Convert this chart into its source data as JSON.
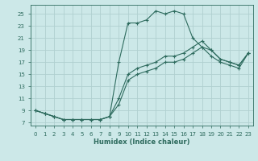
{
  "xlabel": "Humidex (Indice chaleur)",
  "bg_color": "#cce8e8",
  "grid_color": "#b0d0d0",
  "line_color": "#2e6b5e",
  "xlim": [
    -0.5,
    23.5
  ],
  "ylim": [
    6.5,
    26.5
  ],
  "xticks": [
    0,
    1,
    2,
    3,
    4,
    5,
    6,
    7,
    8,
    9,
    10,
    11,
    12,
    13,
    14,
    15,
    16,
    17,
    18,
    19,
    20,
    21,
    22,
    23
  ],
  "yticks": [
    7,
    9,
    11,
    13,
    15,
    17,
    19,
    21,
    23,
    25
  ],
  "curve1_x": [
    0,
    1,
    2,
    3,
    4,
    5,
    6,
    7,
    8,
    9,
    10,
    11,
    12,
    13,
    14,
    15,
    16,
    17,
    18,
    19,
    20,
    21,
    22,
    23
  ],
  "curve1_y": [
    9,
    8.5,
    8,
    7.5,
    7.5,
    7.5,
    7.5,
    7.5,
    8,
    17,
    23.5,
    23.5,
    24,
    25.5,
    25,
    25.5,
    25,
    21,
    19.5,
    19,
    17.5,
    17,
    16.5,
    18.5
  ],
  "curve2_x": [
    0,
    1,
    2,
    3,
    4,
    5,
    6,
    7,
    8,
    9,
    10,
    11,
    12,
    13,
    14,
    15,
    16,
    17,
    18,
    19,
    20,
    21,
    22,
    23
  ],
  "curve2_y": [
    9,
    8.5,
    8,
    7.5,
    7.5,
    7.5,
    7.5,
    7.5,
    8,
    11,
    15,
    16,
    16.5,
    17,
    18,
    18,
    18.5,
    19.5,
    20.5,
    19,
    17.5,
    17,
    16.5,
    18.5
  ],
  "curve3_x": [
    0,
    1,
    2,
    3,
    4,
    5,
    6,
    7,
    8,
    9,
    10,
    11,
    12,
    13,
    14,
    15,
    16,
    17,
    18,
    19,
    20,
    21,
    22,
    23
  ],
  "curve3_y": [
    9,
    8.5,
    8,
    7.5,
    7.5,
    7.5,
    7.5,
    7.5,
    8,
    10,
    14,
    15,
    15.5,
    16,
    17,
    17,
    17.5,
    18.5,
    19.5,
    18,
    17,
    16.5,
    16,
    18.5
  ]
}
